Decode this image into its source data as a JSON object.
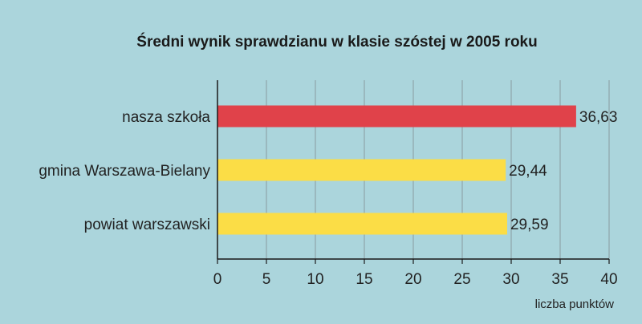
{
  "chart_data": {
    "type": "bar",
    "orientation": "horizontal",
    "title": "Średni wynik sprawdzianu w klasie szóstej w 2005 roku",
    "xlabel": "liczba punktów",
    "ylabel": "",
    "xlim": [
      0,
      40
    ],
    "xticks": [
      0,
      5,
      10,
      15,
      20,
      25,
      30,
      35,
      40
    ],
    "grid": true,
    "categories": [
      "nasza szkoła",
      "gmina Warszawa-Bielany",
      "powiat warszawski"
    ],
    "values": [
      36.63,
      29.44,
      29.59
    ],
    "value_labels": [
      "36,63",
      "29,44",
      "29,59"
    ],
    "bar_colors": [
      "#e0424a",
      "#fbdd46",
      "#fbdd46"
    ]
  },
  "colors": {
    "background": "#abd5dc",
    "grid": "#8a9aa0",
    "axis": "#1a1a1a"
  }
}
